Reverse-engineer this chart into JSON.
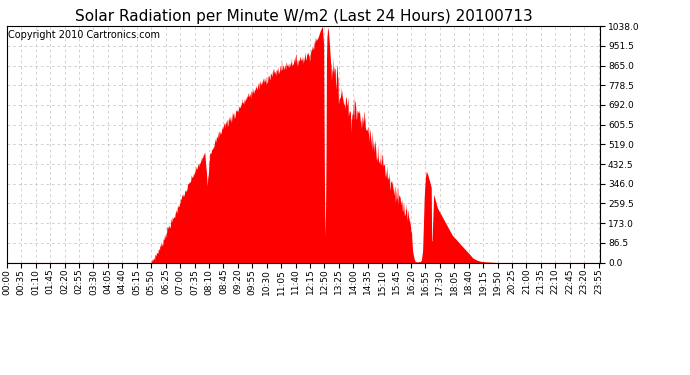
{
  "title": "Solar Radiation per Minute W/m2 (Last 24 Hours) 20100713",
  "copyright": "Copyright 2010 Cartronics.com",
  "y_max": 1038.0,
  "y_min": 0.0,
  "y_ticks": [
    0.0,
    86.5,
    173.0,
    259.5,
    346.0,
    432.5,
    519.0,
    605.5,
    692.0,
    778.5,
    865.0,
    951.5,
    1038.0
  ],
  "fill_color": "#FF0000",
  "line_color": "#FF0000",
  "background_color": "#FFFFFF",
  "grid_color": "#C0C0C0",
  "dashed_line_color": "#FF0000",
  "title_fontsize": 11,
  "copyright_fontsize": 7,
  "tick_fontsize": 6.5,
  "x_tick_interval_min": 35
}
